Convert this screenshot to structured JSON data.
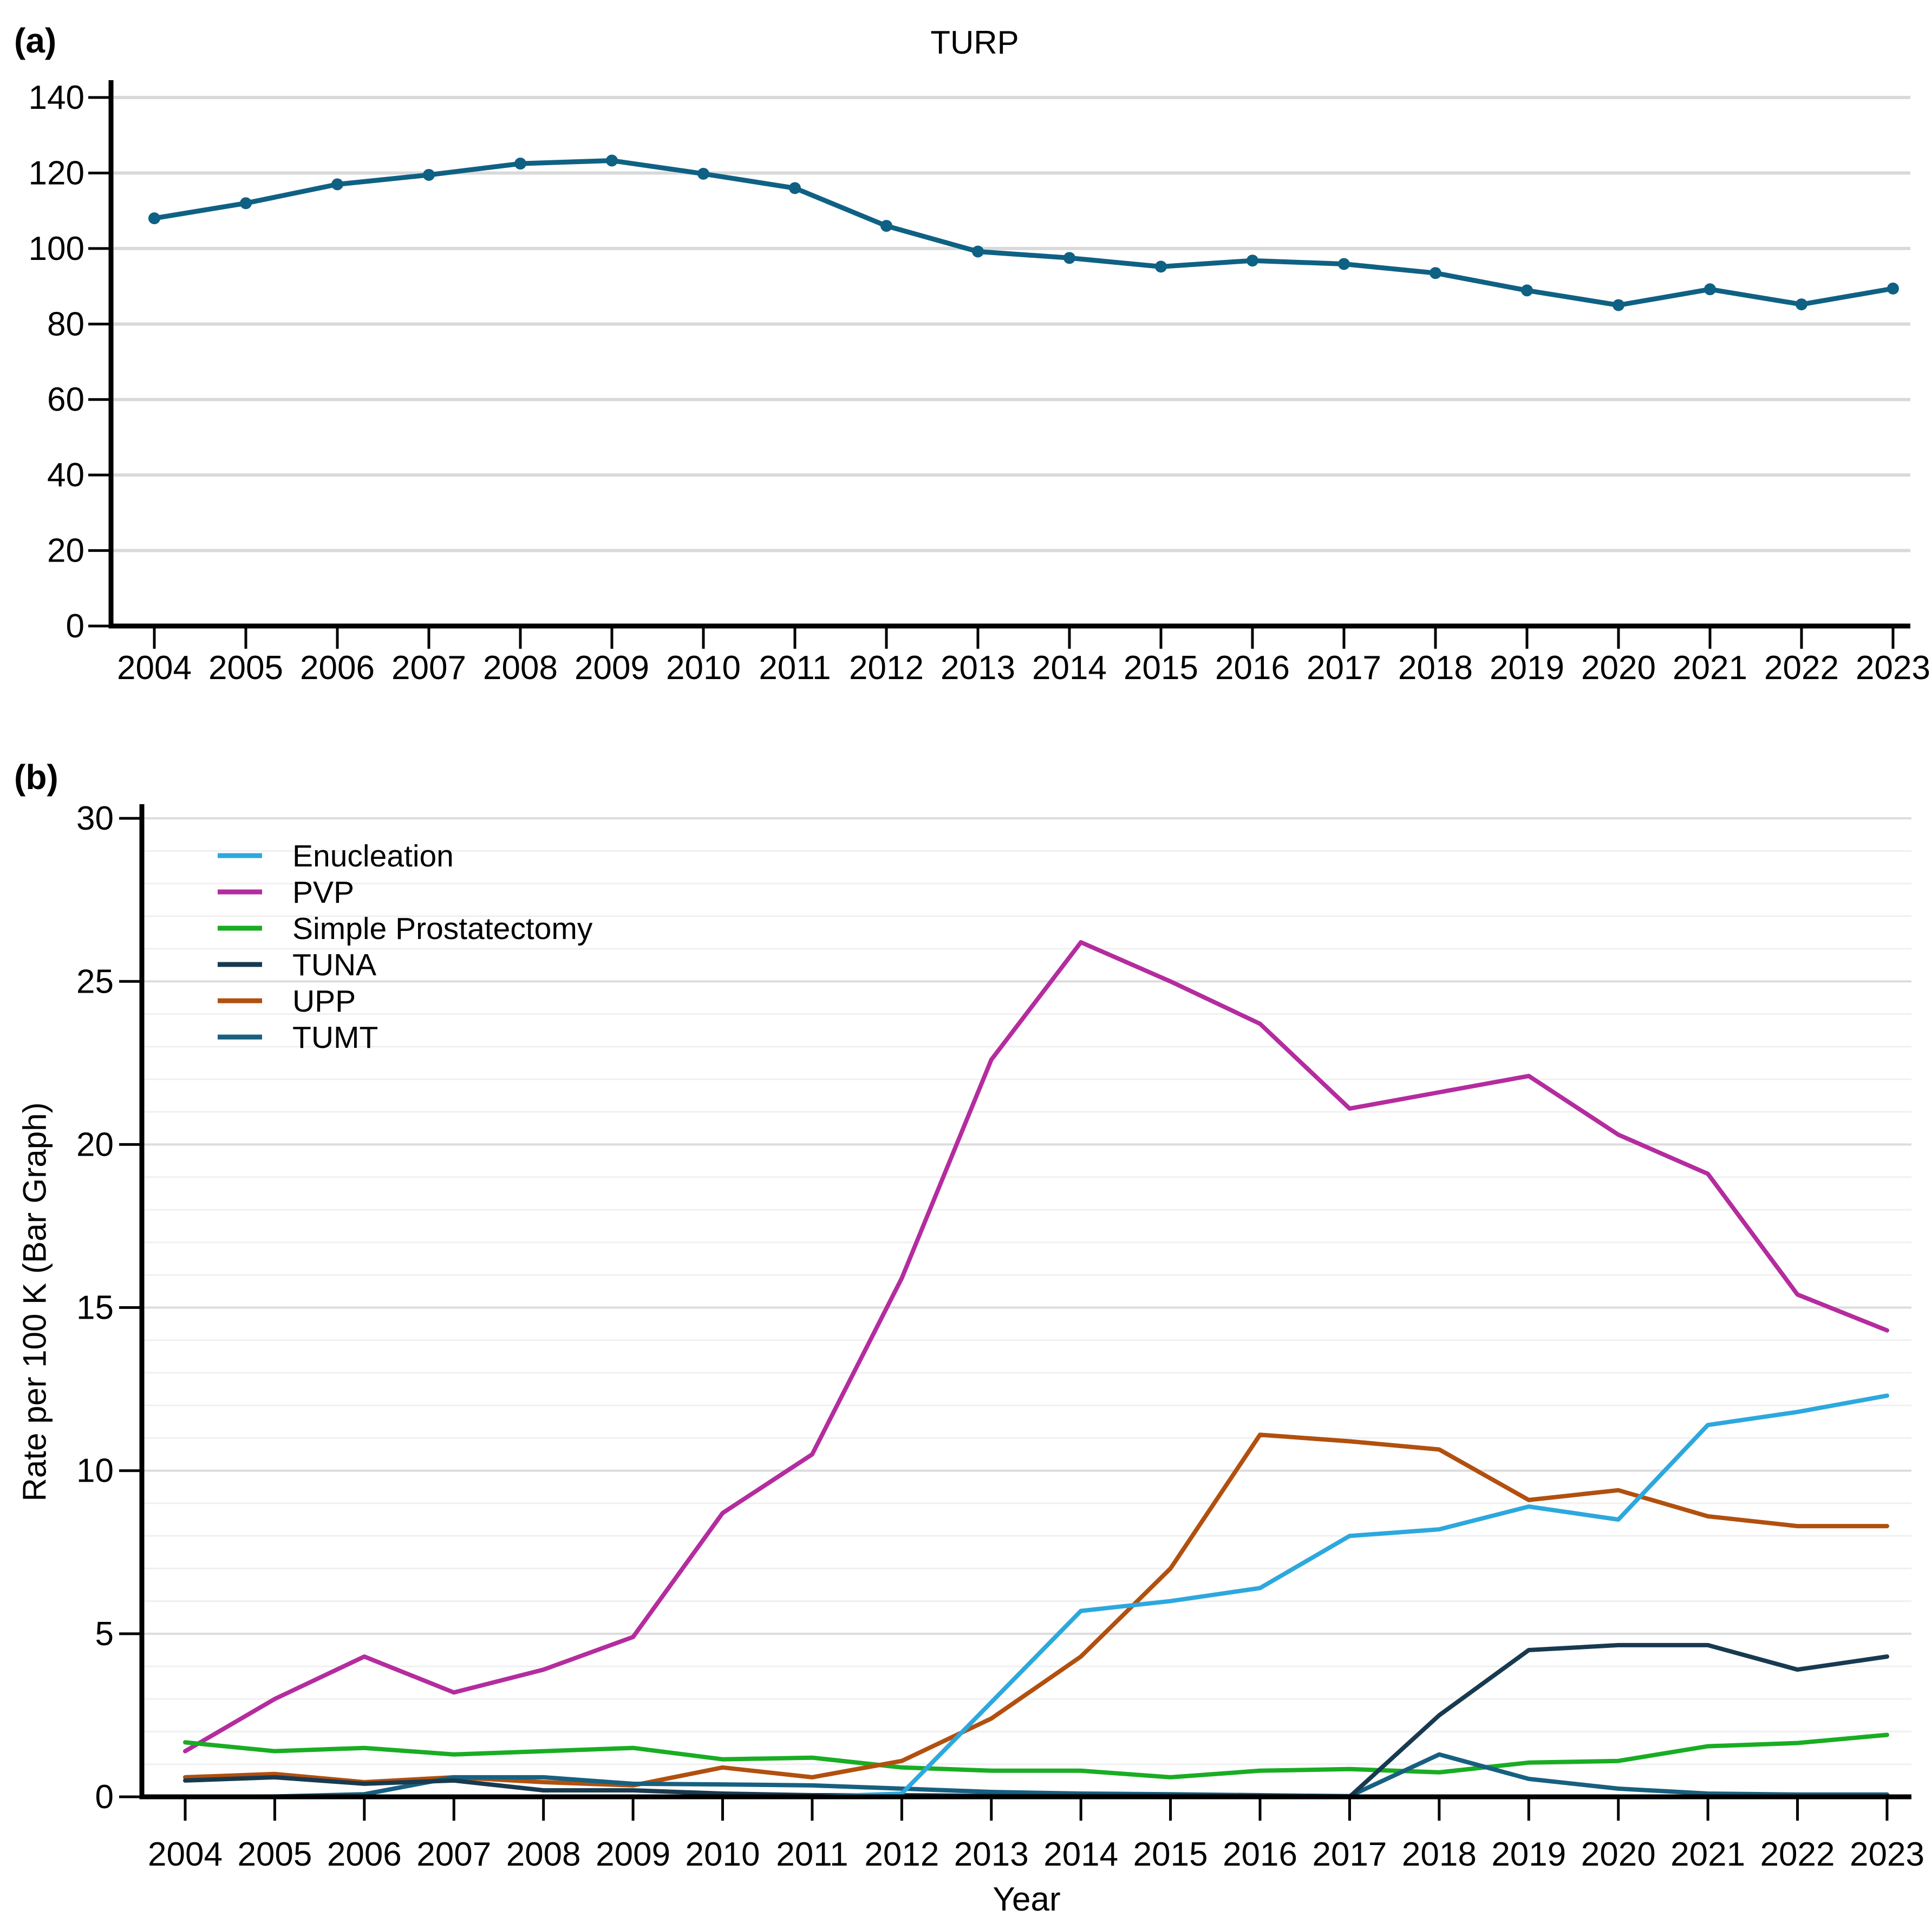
{
  "panel_a": {
    "label": "(a)"
  },
  "panel_b": {
    "label": "(b)"
  },
  "chart_data": [
    {
      "id": "a",
      "type": "line",
      "title": "TURP",
      "xlabel": "",
      "ylabel": "",
      "x": [
        2004,
        2005,
        2006,
        2007,
        2008,
        2009,
        2010,
        2011,
        2012,
        2013,
        2014,
        2015,
        2016,
        2017,
        2018,
        2019,
        2020,
        2021,
        2022,
        2023
      ],
      "ylim": [
        0,
        140
      ],
      "yticks": [
        0,
        20,
        40,
        60,
        80,
        100,
        120,
        140
      ],
      "grid": "horizontal-major",
      "legend": false,
      "series": [
        {
          "name": "TURP",
          "color": "#0f6183",
          "marker": true,
          "values": [
            108,
            112,
            117,
            119.5,
            122.5,
            123.3,
            119.8,
            116,
            106,
            99.2,
            97.5,
            95.2,
            96.8,
            95.9,
            93.5,
            88.9,
            85,
            89.2,
            85.2,
            89.4
          ]
        }
      ]
    },
    {
      "id": "b",
      "type": "line",
      "title": "",
      "xlabel": "Year",
      "ylabel": "Rate per 100 K (Bar Graph)",
      "x": [
        2004,
        2005,
        2006,
        2007,
        2008,
        2009,
        2010,
        2011,
        2012,
        2013,
        2014,
        2015,
        2016,
        2017,
        2018,
        2019,
        2020,
        2021,
        2022,
        2023
      ],
      "ylim": [
        0,
        30
      ],
      "yticks": [
        0,
        5,
        10,
        15,
        20,
        25,
        30
      ],
      "grid": "horizontal-minor-and-major",
      "legend": true,
      "legend_position": "upper-left",
      "series": [
        {
          "name": "Enucleation",
          "color": "#2da8de",
          "values": [
            0,
            0,
            0,
            0,
            0,
            0,
            0,
            0,
            0.1,
            2.9,
            5.7,
            6,
            6.4,
            8,
            8.2,
            8.9,
            8.5,
            11.4,
            11.8,
            12.3
          ]
        },
        {
          "name": "PVP",
          "color": "#b42c9e",
          "values": [
            1.4,
            3,
            4.3,
            3.2,
            3.9,
            4.9,
            8.7,
            10.5,
            15.9,
            22.6,
            26.2,
            25,
            23.7,
            21.1,
            21.6,
            22.1,
            20.3,
            19.1,
            15.4,
            14.3
          ]
        },
        {
          "name": "Simple Prostatectomy",
          "color": "#19ad23",
          "values": [
            1.67,
            1.4,
            1.5,
            1.3,
            1.4,
            1.5,
            1.15,
            1.2,
            0.9,
            0.8,
            0.8,
            0.6,
            0.8,
            0.85,
            0.75,
            1.05,
            1.1,
            1.55,
            1.65,
            1.9
          ]
        },
        {
          "name": "TUNA",
          "color": "#183a50",
          "values": [
            0.5,
            0.6,
            0.4,
            0.5,
            0.2,
            0.2,
            0.1,
            0.05,
            0.05,
            0.03,
            0.03,
            0.03,
            0.02,
            0,
            2.5,
            4.5,
            4.65,
            4.65,
            3.9,
            4.3
          ]
        },
        {
          "name": "UPP",
          "color": "#b1500f",
          "values": [
            0.6,
            0.7,
            0.45,
            0.6,
            0.45,
            0.35,
            0.9,
            0.6,
            1.1,
            2.4,
            4.3,
            7,
            11.1,
            10.9,
            10.65,
            9.1,
            9.4,
            8.6,
            8.3,
            8.3
          ]
        },
        {
          "name": "TUMT",
          "color": "#176080",
          "values": [
            0,
            0.01,
            0.08,
            0.6,
            0.6,
            0.4,
            0.38,
            0.35,
            0.25,
            0.15,
            0.1,
            0.08,
            0.05,
            0.02,
            1.3,
            0.55,
            0.25,
            0.1,
            0.07,
            0.07
          ]
        }
      ]
    }
  ]
}
